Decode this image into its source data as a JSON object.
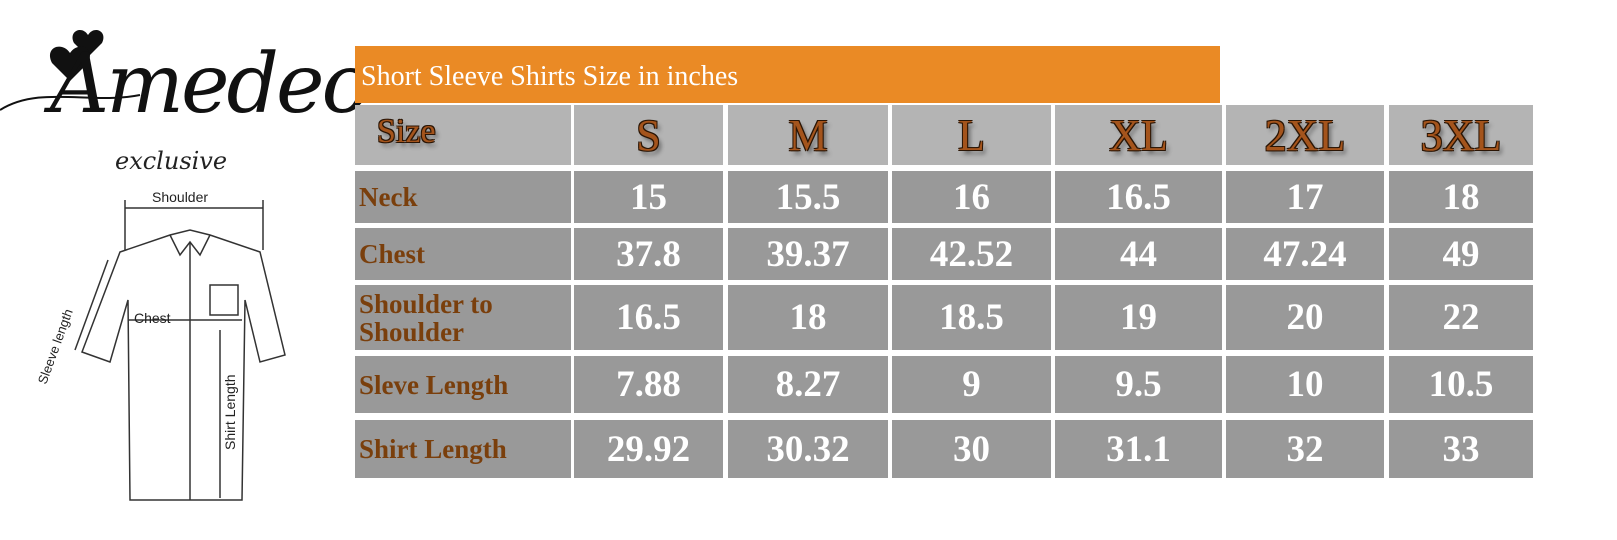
{
  "logo": {
    "brand": "Amedeo",
    "sub": "exclusive"
  },
  "diagram": {
    "shoulder": "Shoulder",
    "chest": "Chest",
    "sleeve": "Sleeve length",
    "shirt": "Shirt Length"
  },
  "title": "Short Sleeve Shirts Size in inches",
  "colors": {
    "title_bar": "#ea8a25",
    "header_bg": "#b4b4b4",
    "body_bg": "#999999",
    "label_text": "#7a3f0c",
    "size_text": "#a4541c"
  },
  "table": {
    "header": [
      "Size",
      "S",
      "M",
      "L",
      "XL",
      "2XL",
      "3XL"
    ],
    "rows": [
      {
        "label": "Neck",
        "values": [
          "15",
          "15.5",
          "16",
          "16.5",
          "17",
          "18"
        ]
      },
      {
        "label": "Chest",
        "values": [
          "37.8",
          "39.37",
          "42.52",
          "44",
          "47.24",
          "49"
        ]
      },
      {
        "label": "Shoulder to Shoulder",
        "values": [
          "16.5",
          "18",
          "18.5",
          "19",
          "20",
          "22"
        ]
      },
      {
        "label": "Sleve Length",
        "values": [
          "7.88",
          "8.27",
          "9",
          "9.5",
          "10",
          "10.5"
        ]
      },
      {
        "label": "Shirt Length",
        "values": [
          "29.92",
          "30.32",
          "30",
          "31.1",
          "32",
          "33"
        ]
      }
    ]
  }
}
